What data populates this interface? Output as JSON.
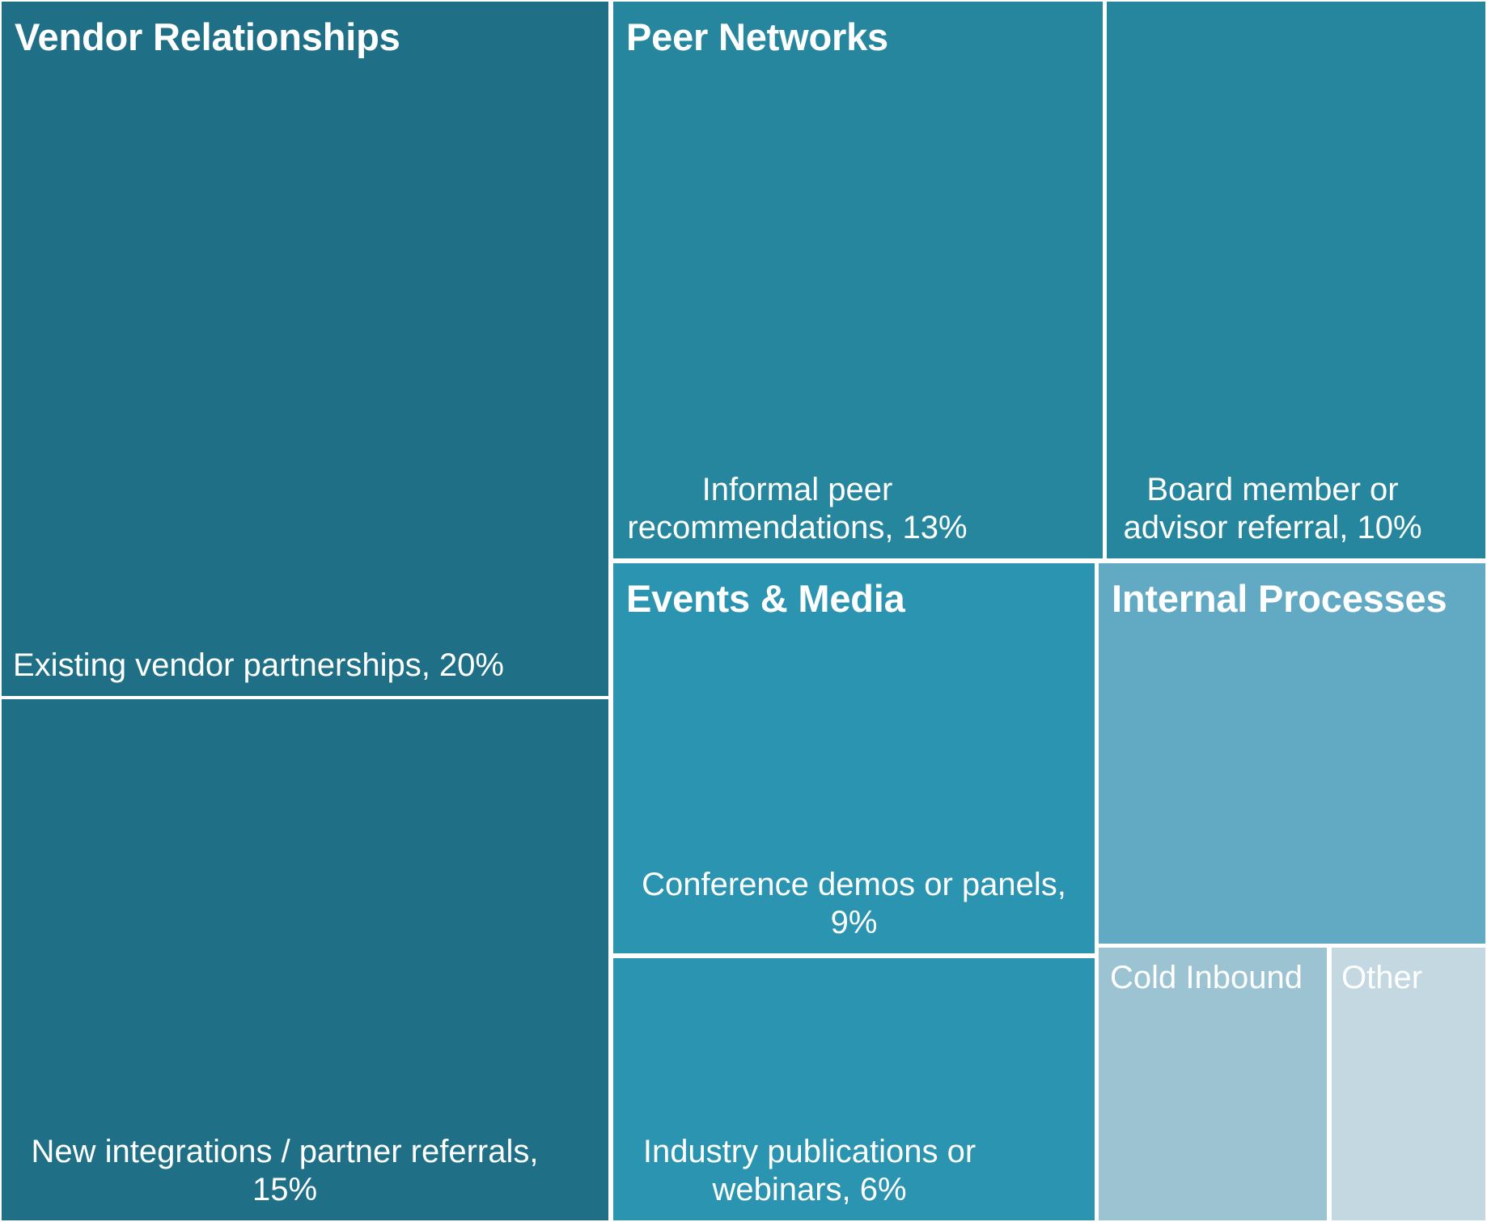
{
  "chart_data": {
    "type": "treemap",
    "groups": [
      {
        "name": "Vendor Relationships",
        "color": "#1f7087",
        "items": [
          {
            "label": "Existing vendor partnerships, 20%",
            "value": 20
          },
          {
            "label": "New integrations / partner referrals, 15%",
            "value": 15
          }
        ]
      },
      {
        "name": "Peer Networks",
        "color": "#25869e",
        "items": [
          {
            "label": "Informal peer recommendations, 13%",
            "value": 13
          },
          {
            "label": "Board member or advisor referral, 10%",
            "value": 10
          }
        ]
      },
      {
        "name": "Events & Media",
        "color": "#2b94b0",
        "items": [
          {
            "label": "Conference demos or panels, 9%",
            "value": 9
          },
          {
            "label": "Industry publications or webinars, 6%",
            "value": 6
          }
        ]
      },
      {
        "name": "Internal Processes",
        "color": "#62aac3",
        "items": [
          {
            "label": "",
            "value": 7
          }
        ]
      },
      {
        "name": "",
        "color": "#9bc3d2",
        "items": [
          {
            "label": "Cold Inbound",
            "value": 4
          }
        ]
      },
      {
        "name": "",
        "color": "#c3d8e1",
        "items": [
          {
            "label": "Other",
            "value": 3
          }
        ]
      }
    ]
  }
}
